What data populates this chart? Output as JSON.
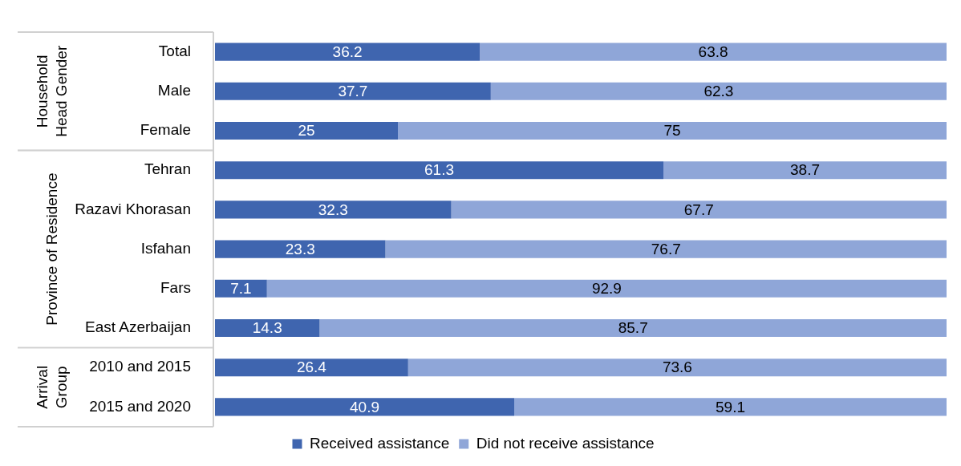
{
  "chart_data": {
    "type": "bar",
    "orientation": "horizontal",
    "stacked": true,
    "categories": [
      "Total",
      "Male",
      "Female",
      "Tehran",
      "Razavi Khorasan",
      "Isfahan",
      "Fars",
      "East Azerbaijan",
      "2010 and 2015",
      "2015 and 2020"
    ],
    "series": [
      {
        "name": "Received assistance",
        "color": "#3f65af",
        "values": [
          36.2,
          37.7,
          25,
          61.3,
          32.3,
          23.3,
          7.1,
          14.3,
          26.4,
          40.9
        ]
      },
      {
        "name": "Did not receive assistance",
        "color": "#8fa6d8",
        "values": [
          63.8,
          62.3,
          75,
          38.7,
          67.7,
          76.7,
          92.9,
          85.7,
          73.6,
          59.1
        ]
      }
    ],
    "xlim": [
      0,
      100
    ],
    "tick_labels": "y",
    "data_labels": true,
    "legend": "bottom",
    "annotations": [
      "Household Head Gender",
      "Province of Residence",
      "Arrival Group"
    ]
  }
}
